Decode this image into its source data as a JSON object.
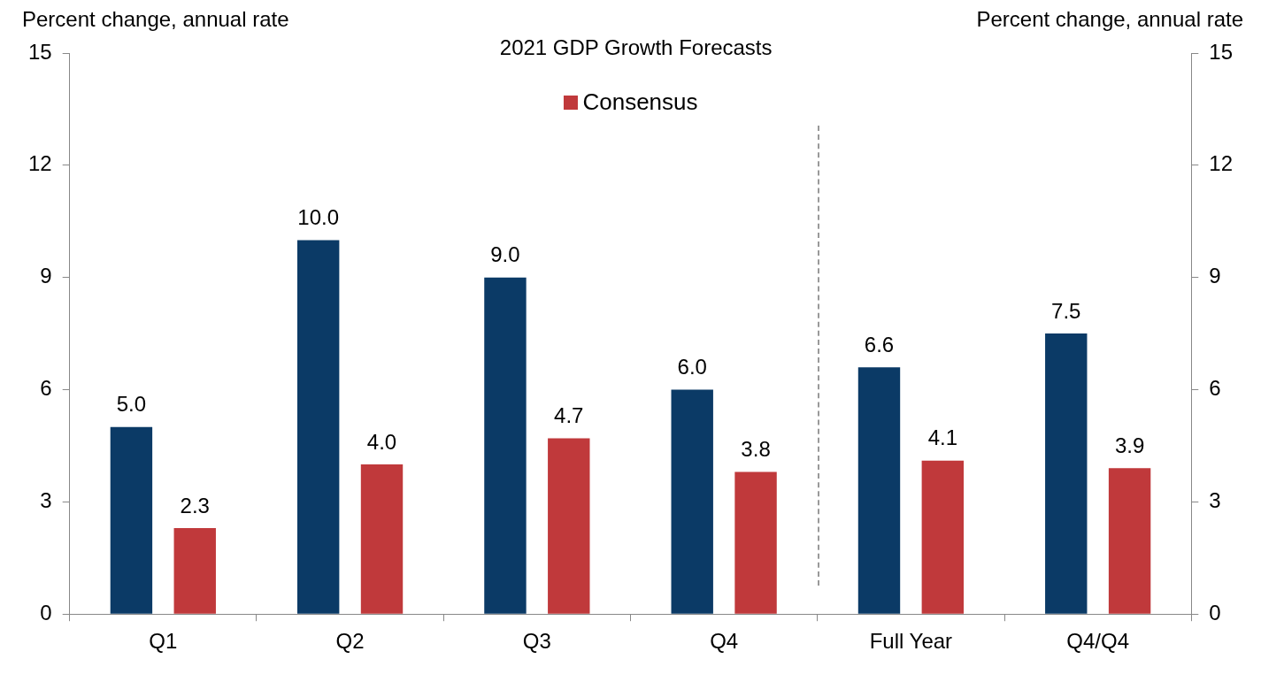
{
  "chart_data": {
    "type": "bar",
    "title": "2021 GDP Growth Forecasts",
    "ylabel": "Percent change, annual rate",
    "y2label": "Percent change, annual rate",
    "categories": [
      "Q1",
      "Q2",
      "Q3",
      "Q4",
      "Full Year",
      "Q4/Q4"
    ],
    "series": [
      {
        "color": "#0b3a66",
        "values": [
          5.0,
          10.0,
          9.0,
          6.0,
          6.6,
          7.5
        ],
        "value_labels": [
          "5.0",
          "10.0",
          "9.0",
          "6.0",
          "6.6",
          "7.5"
        ]
      },
      {
        "name": "Consensus",
        "color": "#c0393b",
        "values": [
          2.3,
          4.0,
          4.7,
          3.8,
          4.1,
          3.9
        ],
        "value_labels": [
          "2.3",
          "4.0",
          "4.7",
          "3.8",
          "4.1",
          "3.9"
        ]
      }
    ],
    "ylim": [
      0,
      15
    ],
    "yticks": [
      0,
      3,
      6,
      9,
      12,
      15
    ],
    "y2lim": [
      0,
      15
    ],
    "y2ticks": [
      0,
      3,
      6,
      9,
      12,
      15
    ],
    "grid": false,
    "legend": "top"
  }
}
